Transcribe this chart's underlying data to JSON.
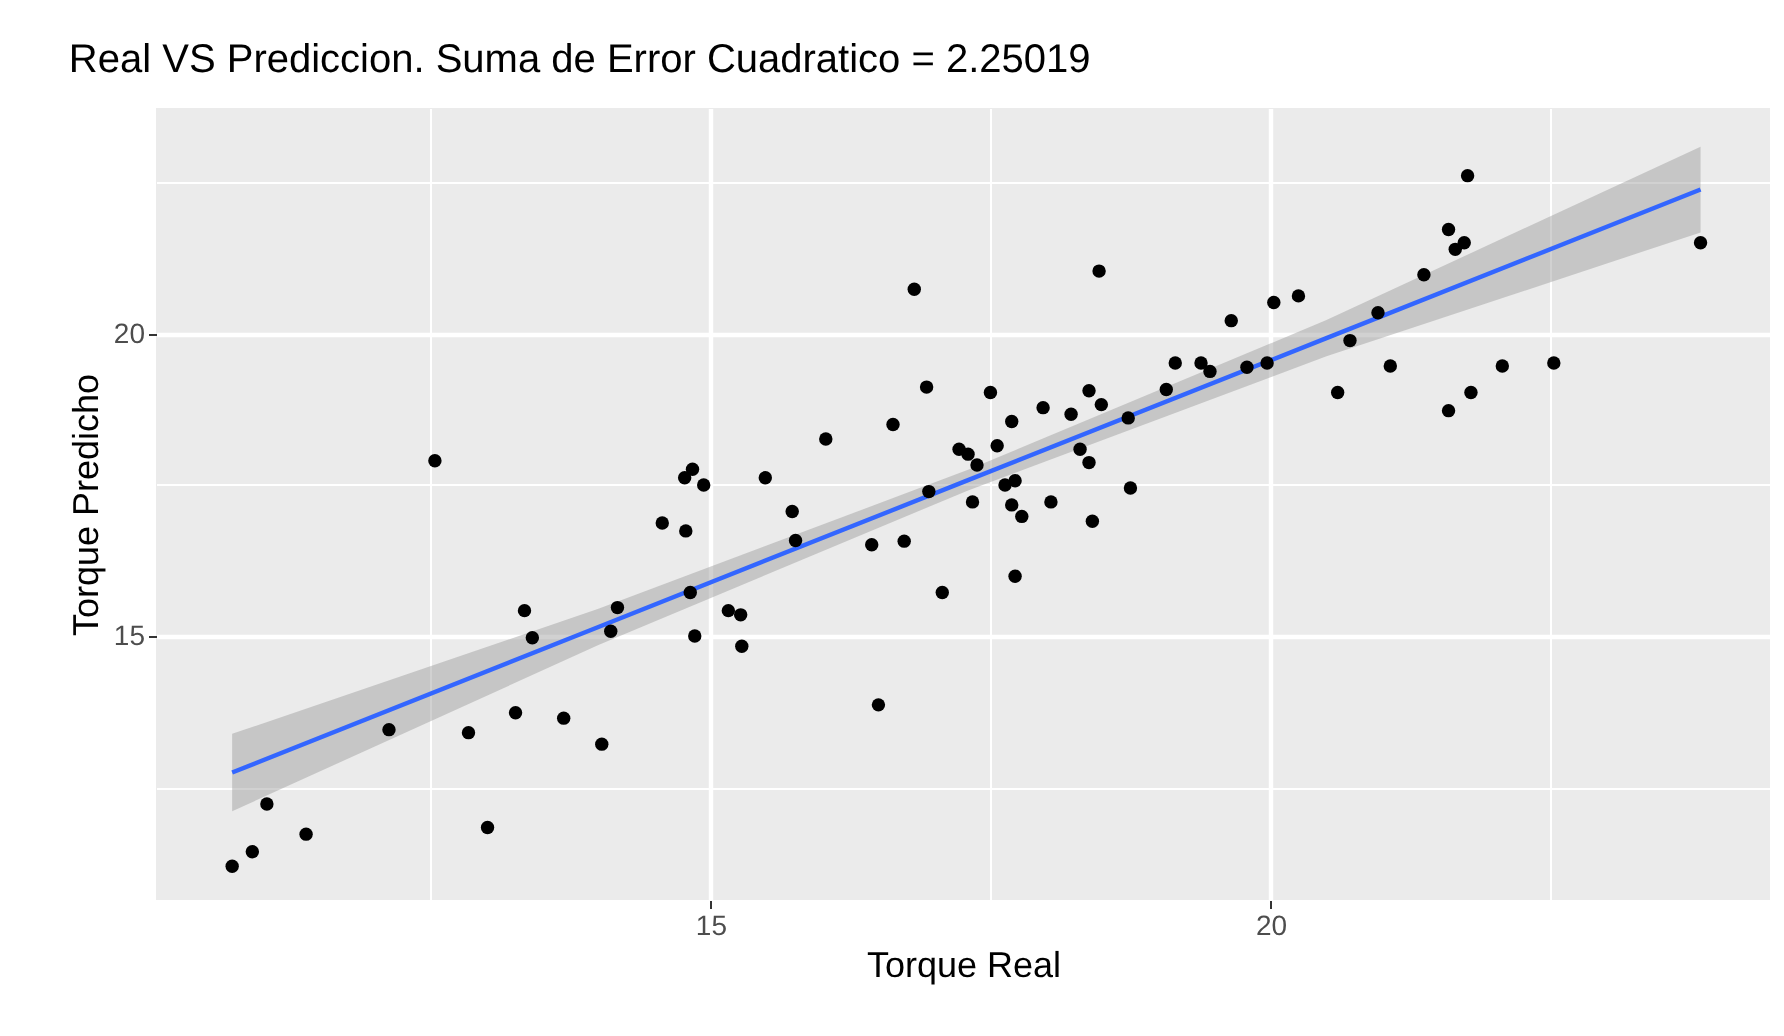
{
  "chart_data": {
    "type": "scatter",
    "title": "Real VS Prediccion. Suma de Error Cuadratico =  2.25019",
    "xlabel": "Torque Real",
    "ylabel": "Torque Predicho",
    "xlim": [
      10.05,
      24.46
    ],
    "ylim": [
      10.63,
      23.74
    ],
    "xticks": [
      {
        "value": 12.5,
        "label": null
      },
      15,
      {
        "value": 17.5,
        "label": null
      },
      20,
      {
        "value": 22.5,
        "label": null
      }
    ],
    "yticks": [
      {
        "value": 12.5,
        "label": null
      },
      15,
      {
        "value": 17.5,
        "label": null
      },
      20,
      {
        "value": 22.5,
        "label": null
      }
    ],
    "grid": true,
    "marker": "circle",
    "series": [
      {
        "color": "#000000",
        "x": [
          12.54,
          14.77,
          14.84,
          14.94,
          15.49,
          16.03,
          15.73,
          16.82,
          16.63,
          16.93,
          16.95,
          17.22,
          17.3,
          17.38,
          17.56,
          17.5,
          17.69,
          17.63,
          17.72,
          17.34,
          17.69,
          17.78,
          17.97,
          18.04,
          18.22,
          18.3,
          18.38,
          18.49,
          18.38,
          18.41,
          18.47,
          18.75,
          18.73,
          19.07,
          19.15,
          19.38,
          19.46,
          19.65,
          19.79,
          19.97,
          20.03,
          20.25,
          20.6,
          20.71,
          20.96,
          21.07,
          21.37,
          21.59,
          21.65,
          21.73,
          21.76,
          21.59,
          21.79,
          22.07,
          22.53,
          23.84,
          10.73,
          10.91,
          11.04,
          11.39,
          12.13,
          12.84,
          13.01,
          13.26,
          13.69,
          14.03,
          13.34,
          13.41,
          14.11,
          14.17,
          14.57,
          14.78,
          14.82,
          14.86,
          15.76,
          15.16,
          15.27,
          15.28,
          16.44,
          16.73,
          16.5,
          17.07,
          17.72
        ],
        "values": [
          17.9,
          17.62,
          17.76,
          17.5,
          17.62,
          18.26,
          17.06,
          20.74,
          18.5,
          19.12,
          17.39,
          18.09,
          18.01,
          17.83,
          18.15,
          19.03,
          18.55,
          17.5,
          17.57,
          17.22,
          17.17,
          16.98,
          18.78,
          17.22,
          18.67,
          18.09,
          19.06,
          18.83,
          17.87,
          16.9,
          21.04,
          17.45,
          18.61,
          19.08,
          19.52,
          19.52,
          19.38,
          20.22,
          19.45,
          19.52,
          20.52,
          20.63,
          19.03,
          19.89,
          20.35,
          19.47,
          20.98,
          21.73,
          21.4,
          21.51,
          22.62,
          18.73,
          19.03,
          19.47,
          19.52,
          21.51,
          11.19,
          11.43,
          12.22,
          11.72,
          13.45,
          13.4,
          11.83,
          13.73,
          13.64,
          13.21,
          15.42,
          14.97,
          15.08,
          15.47,
          16.87,
          16.74,
          15.72,
          15.0,
          16.58,
          15.42,
          15.35,
          14.83,
          16.51,
          16.57,
          13.86,
          15.72,
          15.99
        ]
      },
      {
        "type": "line",
        "color": "#3366ff",
        "line_style": "solid",
        "marker": "none",
        "x": [
          10.73,
          14.0,
          17.3,
          20.5,
          23.84
        ],
        "values": [
          12.74,
          15.15,
          17.58,
          19.93,
          22.39
        ],
        "lower": [
          12.1,
          14.85,
          17.41,
          19.63,
          21.68
        ],
        "upper": [
          13.38,
          15.45,
          17.75,
          20.23,
          23.1
        ]
      }
    ]
  }
}
